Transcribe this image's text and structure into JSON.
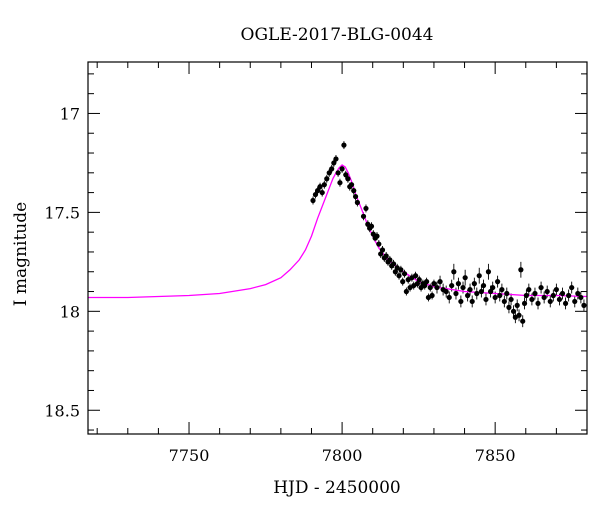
{
  "chart_data": {
    "type": "scatter",
    "title": "OGLE-2017-BLG-0044",
    "xlabel": "HJD - 2450000",
    "ylabel": "I magnitude",
    "xlim": [
      7717,
      7880
    ],
    "ylim": [
      18.62,
      16.74
    ],
    "y_inverted": true,
    "grid": false,
    "x_ticks": [
      7750,
      7800,
      7850
    ],
    "x_tick_labels": [
      "7750",
      "7800",
      "7850"
    ],
    "y_ticks": [
      17,
      17.5,
      18,
      18.5
    ],
    "y_tick_labels": [
      "17",
      "17.5",
      "18",
      "18.5"
    ],
    "colors": {
      "points": "#000000",
      "model": "#ff00ff",
      "frame": "#000000"
    },
    "model": {
      "name": "",
      "color": "#ff00ff",
      "points": [
        [
          7717,
          17.93
        ],
        [
          7730,
          17.93
        ],
        [
          7740,
          17.925
        ],
        [
          7750,
          17.92
        ],
        [
          7760,
          17.91
        ],
        [
          7770,
          17.885
        ],
        [
          7775,
          17.865
        ],
        [
          7780,
          17.83
        ],
        [
          7783,
          17.79
        ],
        [
          7786,
          17.74
        ],
        [
          7788,
          17.69
        ],
        [
          7790,
          17.62
        ],
        [
          7792,
          17.53
        ],
        [
          7794,
          17.45
        ],
        [
          7796,
          17.37
        ],
        [
          7797,
          17.33
        ],
        [
          7798,
          17.3
        ],
        [
          7799,
          17.275
        ],
        [
          7800,
          17.26
        ],
        [
          7801,
          17.27
        ],
        [
          7802,
          17.3
        ],
        [
          7803,
          17.34
        ],
        [
          7804,
          17.39
        ],
        [
          7806,
          17.47
        ],
        [
          7808,
          17.55
        ],
        [
          7810,
          17.62
        ],
        [
          7812,
          17.68
        ],
        [
          7815,
          17.74
        ],
        [
          7820,
          17.8
        ],
        [
          7825,
          17.85
        ],
        [
          7830,
          17.875
        ],
        [
          7840,
          17.9
        ],
        [
          7850,
          17.91
        ],
        [
          7860,
          17.92
        ],
        [
          7870,
          17.92
        ],
        [
          7880,
          17.925
        ]
      ]
    },
    "series": [
      {
        "name": "",
        "color": "#000000",
        "points": [
          [
            7790.5,
            17.44,
            0.02
          ],
          [
            7791.3,
            17.41,
            0.02
          ],
          [
            7792.0,
            17.39,
            0.02
          ],
          [
            7792.8,
            17.37,
            0.02
          ],
          [
            7793.5,
            17.4,
            0.02
          ],
          [
            7794.2,
            17.36,
            0.02
          ],
          [
            7795.0,
            17.33,
            0.02
          ],
          [
            7795.8,
            17.3,
            0.02
          ],
          [
            7796.6,
            17.28,
            0.02
          ],
          [
            7797.3,
            17.25,
            0.02
          ],
          [
            7798.0,
            17.23,
            0.02
          ],
          [
            7798.7,
            17.3,
            0.02
          ],
          [
            7799.3,
            17.35,
            0.02
          ],
          [
            7800.0,
            17.28,
            0.02
          ],
          [
            7800.6,
            17.16,
            0.02
          ],
          [
            7801.2,
            17.31,
            0.02
          ],
          [
            7801.9,
            17.33,
            0.02
          ],
          [
            7802.5,
            17.37,
            0.02
          ],
          [
            7803.1,
            17.36,
            0.02
          ],
          [
            7803.8,
            17.39,
            0.02
          ],
          [
            7804.4,
            17.42,
            0.02
          ],
          [
            7805.0,
            17.45,
            0.02
          ],
          [
            7807.0,
            17.52,
            0.02
          ],
          [
            7807.8,
            17.48,
            0.02
          ],
          [
            7808.4,
            17.56,
            0.02
          ],
          [
            7809.0,
            17.58,
            0.02
          ],
          [
            7809.6,
            17.57,
            0.02
          ],
          [
            7810.2,
            17.61,
            0.02
          ],
          [
            7810.8,
            17.63,
            0.02
          ],
          [
            7811.4,
            17.62,
            0.02
          ],
          [
            7812.0,
            17.66,
            0.02
          ],
          [
            7812.6,
            17.71,
            0.02
          ],
          [
            7813.2,
            17.69,
            0.02
          ],
          [
            7813.8,
            17.73,
            0.02
          ],
          [
            7814.4,
            17.72,
            0.02
          ],
          [
            7815.0,
            17.75,
            0.02
          ],
          [
            7815.6,
            17.74,
            0.02
          ],
          [
            7816.2,
            17.77,
            0.02
          ],
          [
            7816.8,
            17.76,
            0.02
          ],
          [
            7817.4,
            17.8,
            0.02
          ],
          [
            7818.0,
            17.78,
            0.02
          ],
          [
            7818.6,
            17.82,
            0.02
          ],
          [
            7819.2,
            17.79,
            0.02
          ],
          [
            7819.8,
            17.85,
            0.02
          ],
          [
            7820.4,
            17.81,
            0.02
          ],
          [
            7821.0,
            17.9,
            0.02
          ],
          [
            7821.6,
            17.84,
            0.02
          ],
          [
            7822.2,
            17.88,
            0.02
          ],
          [
            7822.8,
            17.83,
            0.02
          ],
          [
            7823.4,
            17.87,
            0.02
          ],
          [
            7824.0,
            17.82,
            0.02
          ],
          [
            7824.6,
            17.86,
            0.02
          ],
          [
            7825.2,
            17.84,
            0.02
          ],
          [
            7825.8,
            17.88,
            0.02
          ],
          [
            7826.4,
            17.86,
            0.02
          ],
          [
            7827.0,
            17.87,
            0.02
          ],
          [
            7827.6,
            17.85,
            0.02
          ],
          [
            7828.2,
            17.93,
            0.02
          ],
          [
            7828.8,
            17.88,
            0.02
          ],
          [
            7829.4,
            17.92,
            0.02
          ],
          [
            7830.0,
            17.86,
            0.02
          ],
          [
            7831.0,
            17.88,
            0.03
          ],
          [
            7832.0,
            17.85,
            0.03
          ],
          [
            7833.0,
            17.89,
            0.03
          ],
          [
            7834.0,
            17.9,
            0.03
          ],
          [
            7835.0,
            17.93,
            0.03
          ],
          [
            7835.8,
            17.87,
            0.03
          ],
          [
            7836.5,
            17.8,
            0.04
          ],
          [
            7837.2,
            17.91,
            0.03
          ],
          [
            7838.0,
            17.86,
            0.03
          ],
          [
            7838.8,
            17.95,
            0.03
          ],
          [
            7839.5,
            17.88,
            0.03
          ],
          [
            7840.2,
            17.83,
            0.04
          ],
          [
            7841.0,
            17.92,
            0.03
          ],
          [
            7841.8,
            17.89,
            0.03
          ],
          [
            7842.5,
            17.95,
            0.03
          ],
          [
            7843.2,
            17.86,
            0.03
          ],
          [
            7844.0,
            17.91,
            0.03
          ],
          [
            7844.8,
            17.82,
            0.04
          ],
          [
            7845.5,
            17.9,
            0.03
          ],
          [
            7846.2,
            17.87,
            0.03
          ],
          [
            7847.0,
            17.94,
            0.03
          ],
          [
            7847.8,
            17.8,
            0.04
          ],
          [
            7848.5,
            17.9,
            0.03
          ],
          [
            7849.2,
            17.88,
            0.03
          ],
          [
            7850.0,
            17.93,
            0.03
          ],
          [
            7850.8,
            17.85,
            0.03
          ],
          [
            7851.5,
            17.92,
            0.03
          ],
          [
            7852.2,
            17.89,
            0.03
          ],
          [
            7853.0,
            17.95,
            0.03
          ],
          [
            7853.8,
            17.91,
            0.03
          ],
          [
            7854.5,
            17.98,
            0.03
          ],
          [
            7855.2,
            17.94,
            0.03
          ],
          [
            7856.0,
            18.0,
            0.03
          ],
          [
            7856.6,
            18.03,
            0.03
          ],
          [
            7857.2,
            17.97,
            0.03
          ],
          [
            7857.8,
            18.02,
            0.03
          ],
          [
            7858.4,
            17.79,
            0.04
          ],
          [
            7859.0,
            18.05,
            0.03
          ],
          [
            7859.6,
            17.96,
            0.03
          ],
          [
            7860.2,
            17.92,
            0.03
          ],
          [
            7861.0,
            17.89,
            0.03
          ],
          [
            7862.0,
            17.94,
            0.03
          ],
          [
            7863.0,
            17.91,
            0.03
          ],
          [
            7864.0,
            17.96,
            0.03
          ],
          [
            7865.0,
            17.88,
            0.03
          ],
          [
            7866.0,
            17.93,
            0.03
          ],
          [
            7867.0,
            17.9,
            0.03
          ],
          [
            7868.0,
            17.95,
            0.03
          ],
          [
            7869.0,
            17.92,
            0.03
          ],
          [
            7870.0,
            17.89,
            0.03
          ],
          [
            7871.0,
            17.94,
            0.03
          ],
          [
            7872.0,
            17.91,
            0.03
          ],
          [
            7873.0,
            17.96,
            0.03
          ],
          [
            7874.0,
            17.92,
            0.03
          ],
          [
            7875.0,
            17.88,
            0.03
          ],
          [
            7876.0,
            17.95,
            0.03
          ],
          [
            7877.0,
            17.91,
            0.03
          ],
          [
            7878.0,
            17.93,
            0.03
          ],
          [
            7879.0,
            17.97,
            0.03
          ]
        ]
      }
    ]
  }
}
